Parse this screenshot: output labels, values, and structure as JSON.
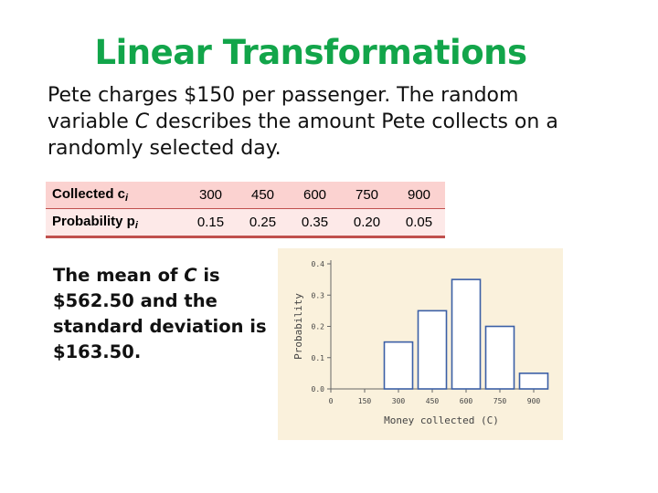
{
  "slide": {
    "title": "Linear Transformations",
    "intro": {
      "part1": "Pete charges $150 per passenger.  The random variable ",
      "var": "C",
      "part2": " describes the amount Pete collects on a randomly selected day."
    },
    "mean_text": {
      "part1": "The mean of ",
      "var": "C",
      "part2": " is $562.50 and the standard deviation is $163.50."
    }
  },
  "table": {
    "row1": {
      "label": "Collected c",
      "sub": "i",
      "values": [
        "300",
        "450",
        "600",
        "750",
        "900"
      ]
    },
    "row2": {
      "label": "Probability p",
      "sub": "i",
      "values": [
        "0.15",
        "0.25",
        "0.35",
        "0.20",
        "0.05"
      ]
    },
    "colors": {
      "header_bg": "#fbd2d0",
      "row_bg": "#fde9e8",
      "border": "#c0504d"
    }
  },
  "chart_data": {
    "type": "bar",
    "x": [
      300,
      450,
      600,
      750,
      900
    ],
    "values": [
      0.15,
      0.25,
      0.35,
      0.2,
      0.05
    ],
    "xticks": [
      "0",
      "150",
      "300",
      "450",
      "600",
      "750",
      "900"
    ],
    "xtick_values": [
      0,
      150,
      300,
      450,
      600,
      750,
      900
    ],
    "yticks": [
      "0.0",
      "0.1",
      "0.2",
      "0.3",
      "0.4"
    ],
    "ytick_values": [
      0,
      0.1,
      0.2,
      0.3,
      0.4
    ],
    "xlabel": "Money collected (C)",
    "ylabel": "Probability",
    "xlim": [
      0,
      900
    ],
    "ylim": [
      0,
      0.4
    ],
    "bar_width": 150,
    "colors": {
      "bar_fill": "#ffffff",
      "bar_stroke": "#3b5fa6",
      "background": "#faf1dc"
    }
  }
}
